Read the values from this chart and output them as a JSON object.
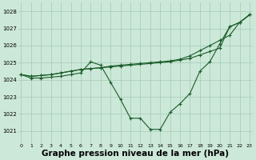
{
  "bg_color": "#cce8d8",
  "grid_color": "#aacebb",
  "line_color": "#1a5c2a",
  "marker_color": "#1a5c2a",
  "xlabel": "Graphe pression niveau de la mer (hPa)",
  "xlabel_fontsize": 7.5,
  "ylabel_ticks": [
    1021,
    1022,
    1023,
    1024,
    1025,
    1026,
    1027,
    1028
  ],
  "xticks": [
    0,
    1,
    2,
    3,
    4,
    5,
    6,
    7,
    8,
    9,
    10,
    11,
    12,
    13,
    14,
    15,
    16,
    17,
    18,
    19,
    20,
    21,
    22,
    23
  ],
  "ylim": [
    1020.3,
    1028.5
  ],
  "xlim": [
    -0.3,
    23.3
  ],
  "series1": [
    1024.3,
    1024.1,
    1024.1,
    1024.15,
    1024.2,
    1024.3,
    1024.4,
    1025.05,
    1024.85,
    1023.85,
    1022.85,
    1021.75,
    1021.75,
    1021.1,
    1021.1,
    1022.1,
    1022.6,
    1023.2,
    1024.5,
    1025.05,
    1026.1,
    1027.1,
    1027.35,
    1027.8
  ],
  "series2": [
    1024.3,
    1024.2,
    1024.25,
    1024.3,
    1024.4,
    1024.5,
    1024.6,
    1024.65,
    1024.7,
    1024.8,
    1024.85,
    1024.9,
    1024.95,
    1025.0,
    1025.05,
    1025.1,
    1025.2,
    1025.4,
    1025.7,
    1026.0,
    1026.3,
    1026.6,
    1027.35,
    1027.8
  ],
  "series3": [
    1024.3,
    1024.2,
    1024.25,
    1024.3,
    1024.4,
    1024.5,
    1024.6,
    1024.65,
    1024.7,
    1024.75,
    1024.8,
    1024.85,
    1024.9,
    1024.95,
    1025.0,
    1025.05,
    1025.15,
    1025.25,
    1025.45,
    1025.65,
    1025.85,
    1027.1,
    1027.35,
    1027.8
  ]
}
